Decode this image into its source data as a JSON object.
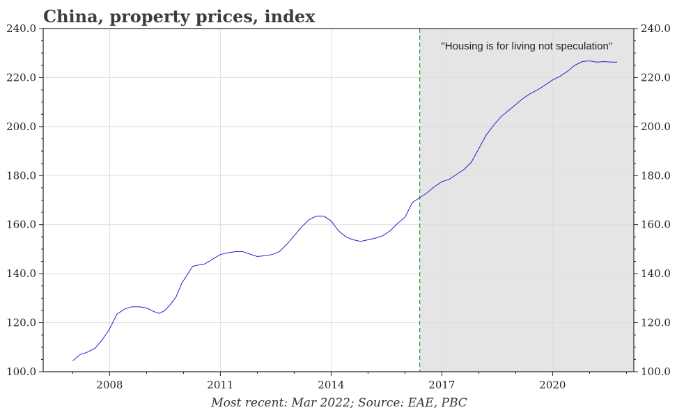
{
  "chart_data": {
    "type": "line",
    "title": "China, property prices, index",
    "source": "Most recent: Mar 2022; Source: EAE, PBC",
    "annotation": "\"Housing is for living not speculation\"",
    "ylim": [
      100,
      240
    ],
    "xlim": [
      2006.2,
      2022.2
    ],
    "y_ticks": [
      100,
      120,
      140,
      160,
      180,
      200,
      220,
      240
    ],
    "y_tick_labels": [
      "100.0",
      "120.0",
      "140.0",
      "160.0",
      "180.0",
      "200.0",
      "220.0",
      "240.0"
    ],
    "x_ticks": [
      2008,
      2011,
      2014,
      2017,
      2020
    ],
    "x_tick_labels": [
      "2008",
      "2011",
      "2014",
      "2017",
      "2020"
    ],
    "shaded_region": [
      2016.4,
      2022.2
    ],
    "vertical_line_x": 2016.4,
    "grid": true,
    "colors": {
      "line": "#1f1fd6",
      "shade": "#e5e5e5",
      "vline": "#3a8f3a",
      "grid": "#dddddd"
    },
    "series": [
      {
        "values": [
          [
            2007.0,
            104.5
          ],
          [
            2007.2,
            107.0
          ],
          [
            2007.4,
            108.0
          ],
          [
            2007.6,
            109.5
          ],
          [
            2007.8,
            113.0
          ],
          [
            2008.0,
            117.5
          ],
          [
            2008.2,
            123.5
          ],
          [
            2008.4,
            125.5
          ],
          [
            2008.6,
            126.5
          ],
          [
            2008.8,
            126.5
          ],
          [
            2009.0,
            126.0
          ],
          [
            2009.2,
            124.5
          ],
          [
            2009.35,
            123.8
          ],
          [
            2009.5,
            125.0
          ],
          [
            2009.65,
            127.5
          ],
          [
            2009.8,
            130.5
          ],
          [
            2009.95,
            136.0
          ],
          [
            2010.1,
            139.5
          ],
          [
            2010.25,
            143.0
          ],
          [
            2010.4,
            143.5
          ],
          [
            2010.55,
            143.8
          ],
          [
            2010.7,
            145.0
          ],
          [
            2010.85,
            146.5
          ],
          [
            2011.0,
            147.8
          ],
          [
            2011.2,
            148.5
          ],
          [
            2011.4,
            149.0
          ],
          [
            2011.6,
            149.0
          ],
          [
            2011.8,
            148.0
          ],
          [
            2012.0,
            147.0
          ],
          [
            2012.2,
            147.3
          ],
          [
            2012.4,
            147.8
          ],
          [
            2012.6,
            149.0
          ],
          [
            2012.8,
            152.0
          ],
          [
            2013.0,
            155.5
          ],
          [
            2013.2,
            159.0
          ],
          [
            2013.4,
            162.0
          ],
          [
            2013.6,
            163.5
          ],
          [
            2013.8,
            163.5
          ],
          [
            2014.0,
            161.5
          ],
          [
            2014.2,
            157.5
          ],
          [
            2014.4,
            155.0
          ],
          [
            2014.6,
            153.8
          ],
          [
            2014.8,
            153.2
          ],
          [
            2015.0,
            153.8
          ],
          [
            2015.2,
            154.5
          ],
          [
            2015.4,
            155.5
          ],
          [
            2015.6,
            157.5
          ],
          [
            2015.8,
            160.5
          ],
          [
            2016.0,
            163.0
          ],
          [
            2016.2,
            169.0
          ],
          [
            2016.4,
            171.0
          ],
          [
            2016.6,
            173.0
          ],
          [
            2016.8,
            175.5
          ],
          [
            2017.0,
            177.5
          ],
          [
            2017.2,
            178.5
          ],
          [
            2017.4,
            180.5
          ],
          [
            2017.6,
            182.5
          ],
          [
            2017.8,
            185.5
          ],
          [
            2018.0,
            191.0
          ],
          [
            2018.2,
            196.5
          ],
          [
            2018.4,
            200.5
          ],
          [
            2018.6,
            204.0
          ],
          [
            2018.8,
            206.5
          ],
          [
            2019.0,
            209.0
          ],
          [
            2019.2,
            211.5
          ],
          [
            2019.4,
            213.5
          ],
          [
            2019.6,
            215.0
          ],
          [
            2019.8,
            217.0
          ],
          [
            2020.0,
            219.0
          ],
          [
            2020.2,
            220.5
          ],
          [
            2020.4,
            222.5
          ],
          [
            2020.6,
            225.0
          ],
          [
            2020.8,
            226.5
          ],
          [
            2021.0,
            226.8
          ],
          [
            2021.2,
            226.3
          ],
          [
            2021.4,
            226.5
          ],
          [
            2021.6,
            226.3
          ],
          [
            2021.75,
            226.3
          ]
        ]
      }
    ]
  }
}
